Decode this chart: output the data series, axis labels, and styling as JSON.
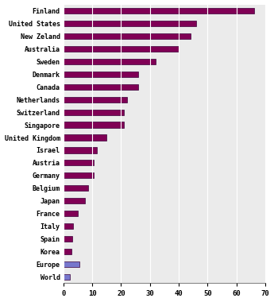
{
  "categories": [
    "Finland",
    "United States",
    "New Zeland",
    "Australia",
    "Sweden",
    "Denmark",
    "Canada",
    "Netherlands",
    "Switzerland",
    "Singapore",
    "United Kingdom",
    "Israel",
    "Austria",
    "Germany",
    "Belgium",
    "Japan",
    "France",
    "Italy",
    "Spain",
    "Korea",
    "Europe",
    "World"
  ],
  "values": [
    66,
    46,
    44,
    40,
    32,
    26,
    26,
    22,
    21,
    21,
    15,
    11.5,
    10.5,
    10.5,
    8.5,
    7.5,
    5,
    3.5,
    3.0,
    2.8,
    5.5,
    2.2
  ],
  "bar_colors": [
    "#800055",
    "#800055",
    "#800055",
    "#800055",
    "#800055",
    "#800055",
    "#800055",
    "#800055",
    "#800055",
    "#800055",
    "#800055",
    "#800055",
    "#800055",
    "#800055",
    "#800055",
    "#800055",
    "#800055",
    "#800055",
    "#800055",
    "#800055",
    "#7777cc",
    "#7777cc"
  ],
  "xlim": [
    0,
    70
  ],
  "xticks": [
    0,
    10,
    20,
    30,
    40,
    50,
    60,
    70
  ],
  "bar_height": 0.45,
  "figure_width": 3.45,
  "figure_height": 3.8,
  "bg_color": "#ffffff",
  "row_bg_color": "#d8d8d8",
  "font_family": "monospace",
  "label_fontsize": 6.0,
  "tick_fontsize": 6.5
}
